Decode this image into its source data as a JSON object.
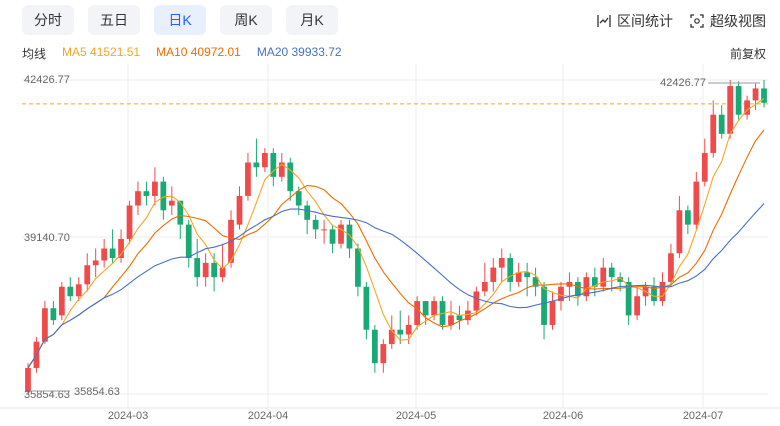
{
  "tabs": [
    {
      "label": "分时",
      "active": false
    },
    {
      "label": "五日",
      "active": false
    },
    {
      "label": "日K",
      "active": true
    },
    {
      "label": "周K",
      "active": false
    },
    {
      "label": "月K",
      "active": false
    }
  ],
  "tools": {
    "interval_stats": "区间统计",
    "super_view": "超级视图"
  },
  "ma": {
    "label": "均线",
    "ma5": {
      "text": "MA5 41521.51",
      "color": "#f5a623"
    },
    "ma10": {
      "text": "MA10 40972.01",
      "color": "#ef6c00"
    },
    "ma20": {
      "text": "MA20 39933.72",
      "color": "#4472c4"
    }
  },
  "adjust_label": "前复权",
  "colors": {
    "up": "#f04b4b",
    "down": "#19a974",
    "ref_line": "#f5a623",
    "active_tab": "#1a66ff"
  },
  "chart_data": {
    "type": "candlestick",
    "y_ticks": [
      "42426.77",
      "39140.70",
      "35854.63"
    ],
    "x_ticks": [
      "2024-03",
      "2024-04",
      "2024-05",
      "2024-06",
      "2024-07"
    ],
    "max_label": "42426.77",
    "min_label": "35854.63",
    "ylim": [
      35854.63,
      42426.77
    ],
    "ref_value": 41926,
    "candles": [
      [
        35900,
        36400,
        35860,
        36500
      ],
      [
        36400,
        36950,
        36300,
        37050
      ],
      [
        36950,
        37650,
        36900,
        37800
      ],
      [
        37650,
        37400,
        37300,
        37800
      ],
      [
        37500,
        38100,
        37400,
        38200
      ],
      [
        38100,
        37900,
        37800,
        38300
      ],
      [
        37900,
        38150,
        37800,
        38300
      ],
      [
        38150,
        38550,
        38000,
        38800
      ],
      [
        38550,
        38650,
        38300,
        38900
      ],
      [
        38650,
        38900,
        38500,
        39100
      ],
      [
        38900,
        38700,
        38600,
        39300
      ],
      [
        38700,
        39100,
        38600,
        39300
      ],
      [
        39100,
        39800,
        39000,
        39900
      ],
      [
        39800,
        40100,
        39600,
        40300
      ],
      [
        40100,
        40000,
        39800,
        40300
      ],
      [
        40000,
        40300,
        39800,
        40600
      ],
      [
        40300,
        39700,
        39500,
        40400
      ],
      [
        39800,
        39900,
        39600,
        40200
      ],
      [
        39900,
        39400,
        39100,
        39900
      ],
      [
        39400,
        38700,
        38500,
        39500
      ],
      [
        38700,
        38300,
        38100,
        39100
      ],
      [
        38300,
        38600,
        38100,
        38800
      ],
      [
        38600,
        38300,
        38000,
        38800
      ],
      [
        38300,
        38500,
        38200,
        39000
      ],
      [
        38600,
        39500,
        38500,
        39700
      ],
      [
        39400,
        40000,
        39300,
        40200
      ],
      [
        40000,
        40700,
        39900,
        40900
      ],
      [
        40700,
        40600,
        40400,
        41200
      ],
      [
        40600,
        40900,
        40500,
        41000
      ],
      [
        40900,
        40400,
        40200,
        41000
      ],
      [
        40400,
        40700,
        40300,
        40900
      ],
      [
        40700,
        40100,
        39900,
        40800
      ],
      [
        40100,
        39800,
        39600,
        40200
      ],
      [
        39800,
        39500,
        39200,
        39900
      ],
      [
        39500,
        39300,
        39100,
        39600
      ],
      [
        39300,
        39300,
        39000,
        39500
      ],
      [
        39300,
        39000,
        38800,
        39400
      ],
      [
        39000,
        39400,
        38900,
        39500
      ],
      [
        39400,
        38900,
        38700,
        39500
      ],
      [
        38900,
        38100,
        37900,
        39000
      ],
      [
        38100,
        37200,
        37000,
        38200
      ],
      [
        37200,
        36500,
        36300,
        37300
      ],
      [
        36500,
        36900,
        36300,
        37000
      ],
      [
        36900,
        37200,
        36800,
        37500
      ],
      [
        37200,
        37100,
        36900,
        37600
      ],
      [
        37100,
        37300,
        36900,
        37500
      ],
      [
        37300,
        37800,
        37200,
        37900
      ],
      [
        37800,
        37500,
        37300,
        37800
      ],
      [
        37500,
        37800,
        37400,
        37900
      ],
      [
        37800,
        37300,
        37200,
        37900
      ],
      [
        37300,
        37500,
        37200,
        37800
      ],
      [
        37500,
        37400,
        37200,
        37700
      ],
      [
        37400,
        37600,
        37300,
        37800
      ],
      [
        37600,
        38000,
        37500,
        38100
      ],
      [
        38000,
        38200,
        37900,
        38600
      ],
      [
        38200,
        38500,
        38000,
        38700
      ],
      [
        38500,
        38700,
        38200,
        38900
      ],
      [
        38700,
        38200,
        38000,
        38800
      ],
      [
        38200,
        38400,
        38100,
        38600
      ],
      [
        38400,
        38300,
        37900,
        38600
      ],
      [
        38300,
        38100,
        37900,
        38500
      ],
      [
        38100,
        37300,
        37000,
        38200
      ],
      [
        37300,
        37800,
        37200,
        38000
      ],
      [
        37800,
        38100,
        37600,
        38200
      ],
      [
        38100,
        38200,
        37800,
        38400
      ],
      [
        38200,
        37900,
        37700,
        38300
      ],
      [
        37900,
        38300,
        37800,
        38400
      ],
      [
        38300,
        38100,
        37900,
        38500
      ],
      [
        38100,
        38500,
        38000,
        38700
      ],
      [
        38500,
        38300,
        38000,
        38600
      ],
      [
        38300,
        38200,
        38000,
        38400
      ],
      [
        38200,
        37500,
        37300,
        38300
      ],
      [
        37500,
        37900,
        37400,
        38100
      ],
      [
        37900,
        38100,
        37700,
        38200
      ],
      [
        38100,
        37800,
        37700,
        38300
      ],
      [
        37800,
        38200,
        37700,
        38400
      ],
      [
        38200,
        38800,
        38100,
        39000
      ],
      [
        38800,
        39700,
        38700,
        40000
      ],
      [
        39700,
        39400,
        39200,
        39800
      ],
      [
        39400,
        40300,
        39300,
        40500
      ],
      [
        40300,
        40900,
        40200,
        41200
      ],
      [
        40900,
        41700,
        40800,
        42000
      ],
      [
        41700,
        41300,
        41200,
        41900
      ],
      [
        41300,
        42300,
        41200,
        42426.77
      ],
      [
        42300,
        41700,
        41600,
        42400
      ],
      [
        41700,
        42000,
        41600,
        42100
      ],
      [
        42000,
        42250,
        41800,
        42350
      ],
      [
        42250,
        41950,
        41850,
        42426.77
      ]
    ]
  }
}
